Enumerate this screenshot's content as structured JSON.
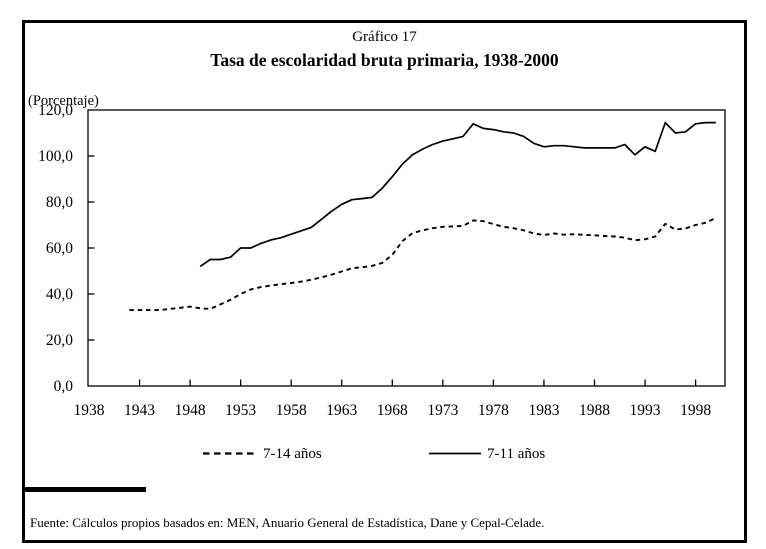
{
  "header": {
    "figure_label": "Gráfico 17",
    "title": "Tasa de escolaridad bruta primaria, 1938-2000",
    "unit_label": "(Porcentaje)"
  },
  "legend": {
    "items": [
      {
        "label": "7-14 años",
        "line_style": "dashed"
      },
      {
        "label": "7-11 años",
        "line_style": "solid"
      }
    ]
  },
  "footer": {
    "source": "Fuente: Cálculos propios basados en: MEN, Anuario General de Estadística, Dane y Cepal-Celade."
  },
  "colors": {
    "line": "#000000",
    "background": "#ffffff",
    "frame_border": "#000000"
  },
  "chart_data": {
    "type": "line",
    "title": "Tasa de escolaridad bruta primaria, 1938-2000",
    "figure_label": "Gráfico 17",
    "xlabel": "",
    "ylabel": "(Porcentaje)",
    "ylim": [
      0,
      120
    ],
    "xlim": [
      1938,
      2001
    ],
    "grid": false,
    "legend_position": "bottom",
    "y_axis": {
      "ticks": [
        {
          "label": "0,0",
          "value": 0
        },
        {
          "label": "20,0",
          "value": 20
        },
        {
          "label": "40,0",
          "value": 40
        },
        {
          "label": "60,0",
          "value": 60
        },
        {
          "label": "80,0",
          "value": 80
        },
        {
          "label": "100,0",
          "value": 100
        },
        {
          "label": "120,0",
          "value": 120
        }
      ]
    },
    "x_axis": {
      "ticks": [
        {
          "label": "1938",
          "value": 1938
        },
        {
          "label": "1943",
          "value": 1943
        },
        {
          "label": "1948",
          "value": 1948
        },
        {
          "label": "1953",
          "value": 1953
        },
        {
          "label": "1958",
          "value": 1958
        },
        {
          "label": "1963",
          "value": 1963
        },
        {
          "label": "1968",
          "value": 1968
        },
        {
          "label": "1973",
          "value": 1973
        },
        {
          "label": "1978",
          "value": 1978
        },
        {
          "label": "1983",
          "value": 1983
        },
        {
          "label": "1988",
          "value": 1988
        },
        {
          "label": "1993",
          "value": 1993
        },
        {
          "label": "1998",
          "value": 1998
        }
      ]
    },
    "series": [
      {
        "name": "7-14 años",
        "line_style": "dashed",
        "points": [
          [
            1942,
            33
          ],
          [
            1945,
            33
          ],
          [
            1946,
            33.5
          ],
          [
            1947,
            34
          ],
          [
            1948,
            34.5
          ],
          [
            1949,
            33.8
          ],
          [
            1950,
            33.5
          ],
          [
            1951,
            35.5
          ],
          [
            1952,
            37.5
          ],
          [
            1953,
            40
          ],
          [
            1954,
            42
          ],
          [
            1955,
            43
          ],
          [
            1956,
            43.7
          ],
          [
            1957,
            44.3
          ],
          [
            1958,
            44.8
          ],
          [
            1959,
            45.4
          ],
          [
            1960,
            46.2
          ],
          [
            1961,
            47.2
          ],
          [
            1962,
            48.4
          ],
          [
            1963,
            49.8
          ],
          [
            1964,
            51.2
          ],
          [
            1965,
            51.6
          ],
          [
            1966,
            52.2
          ],
          [
            1967,
            53.5
          ],
          [
            1968,
            57
          ],
          [
            1969,
            63
          ],
          [
            1970,
            66.5
          ],
          [
            1971,
            67.7
          ],
          [
            1972,
            68.6
          ],
          [
            1973,
            69.2
          ],
          [
            1974,
            69.4
          ],
          [
            1975,
            69.6
          ],
          [
            1976,
            72
          ],
          [
            1977,
            71.7
          ],
          [
            1978,
            70.4
          ],
          [
            1979,
            69.2
          ],
          [
            1980,
            68.6
          ],
          [
            1981,
            67.7
          ],
          [
            1982,
            66.3
          ],
          [
            1983,
            65.7
          ],
          [
            1984,
            66.3
          ],
          [
            1985,
            65.8
          ],
          [
            1986,
            66
          ],
          [
            1987,
            65.7
          ],
          [
            1988,
            65.5
          ],
          [
            1989,
            65.2
          ],
          [
            1990,
            65
          ],
          [
            1991,
            64.5
          ],
          [
            1992,
            63.4
          ],
          [
            1993,
            63.8
          ],
          [
            1994,
            65
          ],
          [
            1995,
            70.5
          ],
          [
            1996,
            68
          ],
          [
            1997,
            68.5
          ],
          [
            1998,
            70
          ],
          [
            1999,
            71
          ],
          [
            2000,
            73
          ]
        ]
      },
      {
        "name": "7-11 años",
        "line_style": "solid",
        "points": [
          [
            1949,
            52
          ],
          [
            1950,
            55
          ],
          [
            1951,
            55
          ],
          [
            1952,
            56
          ],
          [
            1953,
            60
          ],
          [
            1954,
            60
          ],
          [
            1955,
            62
          ],
          [
            1956,
            63.5
          ],
          [
            1957,
            64.5
          ],
          [
            1958,
            66
          ],
          [
            1959,
            67.5
          ],
          [
            1960,
            69
          ],
          [
            1961,
            72.5
          ],
          [
            1962,
            76
          ],
          [
            1963,
            79
          ],
          [
            1964,
            81
          ],
          [
            1965,
            81.5
          ],
          [
            1966,
            82
          ],
          [
            1967,
            86
          ],
          [
            1968,
            91
          ],
          [
            1969,
            96.5
          ],
          [
            1970,
            100.5
          ],
          [
            1971,
            103
          ],
          [
            1972,
            105
          ],
          [
            1973,
            106.5
          ],
          [
            1974,
            107.5
          ],
          [
            1975,
            108.5
          ],
          [
            1976,
            114
          ],
          [
            1977,
            112
          ],
          [
            1978,
            111.5
          ],
          [
            1979,
            110.5
          ],
          [
            1980,
            110
          ],
          [
            1981,
            108.5
          ],
          [
            1982,
            105.5
          ],
          [
            1983,
            104
          ],
          [
            1984,
            104.5
          ],
          [
            1985,
            104.5
          ],
          [
            1986,
            104
          ],
          [
            1987,
            103.5
          ],
          [
            1988,
            103.5
          ],
          [
            1989,
            103.5
          ],
          [
            1990,
            103.5
          ],
          [
            1991,
            105
          ],
          [
            1992,
            100.5
          ],
          [
            1993,
            104
          ],
          [
            1994,
            102
          ],
          [
            1995,
            114.5
          ],
          [
            1996,
            110
          ],
          [
            1997,
            110.5
          ],
          [
            1998,
            114
          ],
          [
            1999,
            114.5
          ],
          [
            2000,
            114.5
          ]
        ]
      }
    ]
  }
}
